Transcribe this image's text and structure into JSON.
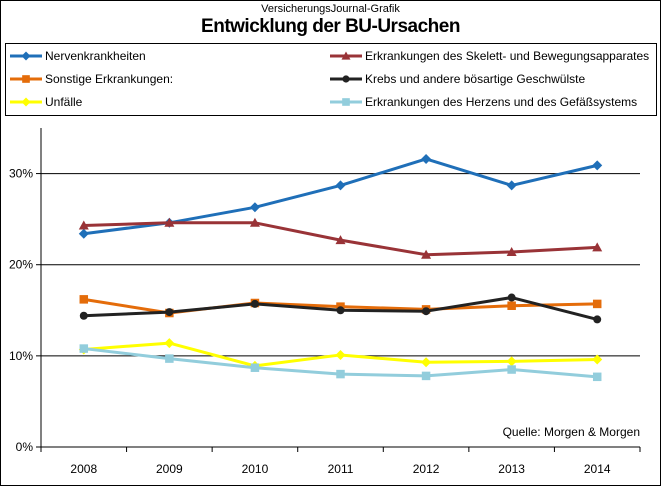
{
  "header": {
    "subtitle": "VersicherungsJournal-Grafik",
    "title": "Entwicklung der BU-Ursachen"
  },
  "source": "Quelle: Morgen & Morgen",
  "chart_data": {
    "type": "line",
    "title": "Entwicklung der BU-Ursachen",
    "xlabel": "",
    "ylabel": "",
    "x": [
      "2008",
      "2009",
      "2010",
      "2011",
      "2012",
      "2013",
      "2014"
    ],
    "ylim": [
      0,
      35
    ],
    "yticks": [
      "0%",
      "10%",
      "20%",
      "30%"
    ],
    "ytick_values": [
      0,
      10,
      20,
      30
    ],
    "grid": "horizontal",
    "legend_position": "top",
    "series": [
      {
        "name": "Nervenkrankheiten",
        "color": "#1f6fb8",
        "marker": "diamond",
        "values": [
          23.4,
          24.6,
          26.3,
          28.7,
          31.6,
          28.7,
          30.9
        ]
      },
      {
        "name": "Erkrankungen des Skelett- und Bewegungsapparates",
        "color": "#993337",
        "marker": "triangle",
        "values": [
          24.3,
          24.6,
          24.6,
          22.7,
          21.1,
          21.4,
          21.9
        ]
      },
      {
        "name": "Sonstige Erkrankungen:",
        "color": "#e46c0a",
        "marker": "square",
        "values": [
          16.2,
          14.7,
          15.8,
          15.4,
          15.1,
          15.5,
          15.7
        ]
      },
      {
        "name": "Krebs und andere bösartige Geschwülste",
        "color": "#222222",
        "marker": "circle",
        "values": [
          14.4,
          14.8,
          15.7,
          15.0,
          14.9,
          16.4,
          14.0
        ]
      },
      {
        "name": "Unfälle",
        "color": "#ffff00",
        "marker": "diamond",
        "values": [
          10.7,
          11.4,
          8.9,
          10.1,
          9.3,
          9.4,
          9.6
        ]
      },
      {
        "name": "Erkrankungen des Herzens und des Gefäßsystems",
        "color": "#92cddc",
        "marker": "square",
        "values": [
          10.8,
          9.7,
          8.7,
          8.0,
          7.8,
          8.5,
          7.7
        ]
      }
    ]
  }
}
